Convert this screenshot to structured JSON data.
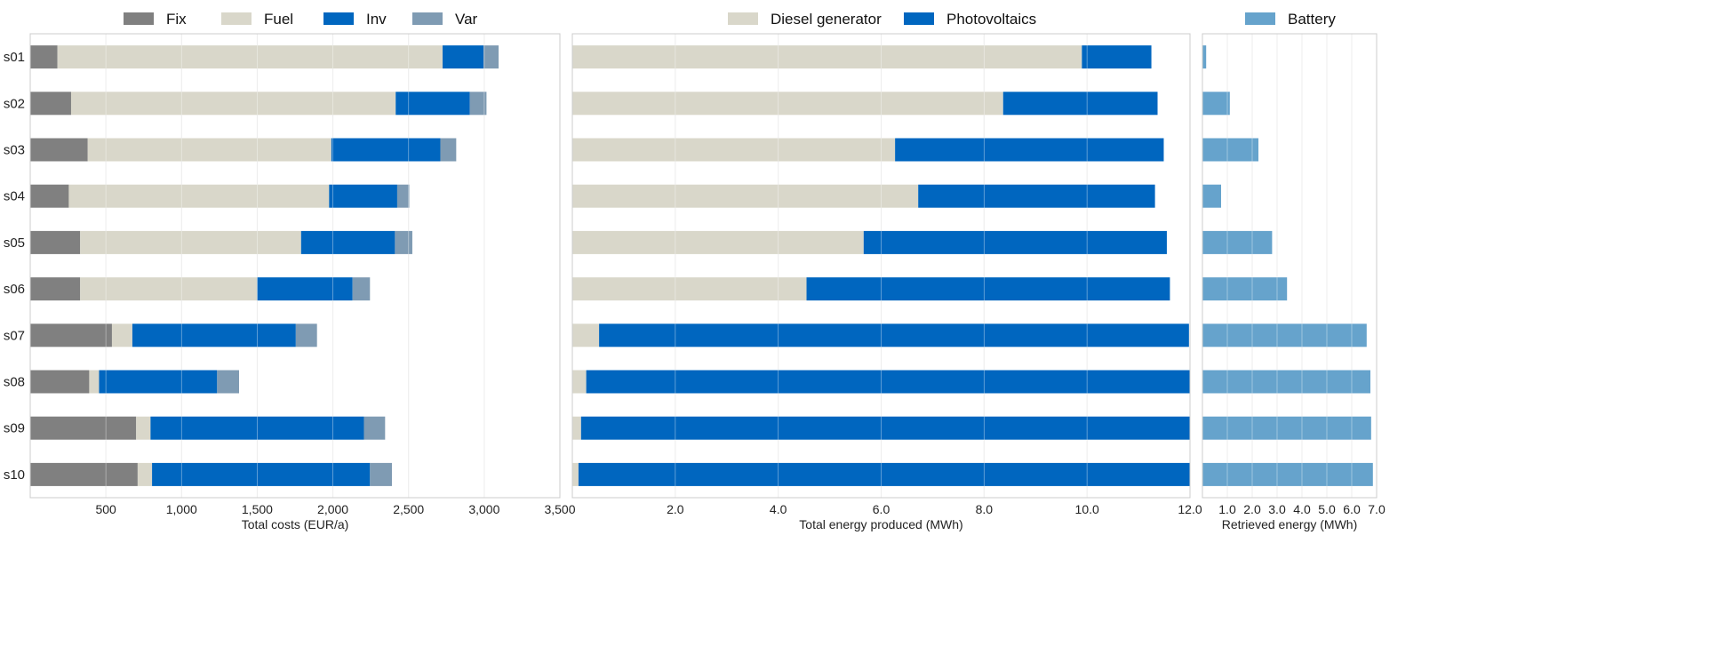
{
  "chart_data": [
    {
      "type": "bar",
      "orientation": "horizontal",
      "stacked": true,
      "categories": [
        "s01",
        "s02",
        "s03",
        "s04",
        "s05",
        "s06",
        "s07",
        "s08",
        "s09",
        "s10"
      ],
      "series": [
        {
          "name": "Fix",
          "color": "#808080",
          "values": [
            180,
            270,
            380,
            255,
            330,
            330,
            540,
            390,
            700,
            710
          ]
        },
        {
          "name": "Fuel",
          "color": "#d9d7ca",
          "values": [
            2545,
            2145,
            1610,
            1720,
            1460,
            1170,
            135,
            65,
            95,
            95
          ]
        },
        {
          "name": "Inv",
          "color": "#0066bf",
          "values": [
            270,
            490,
            720,
            450,
            620,
            630,
            1080,
            780,
            1410,
            1440
          ]
        },
        {
          "name": "Var",
          "color": "#7f9bb3",
          "values": [
            100,
            110,
            105,
            80,
            115,
            115,
            140,
            145,
            140,
            145
          ]
        }
      ],
      "xlabel": "Total costs (EUR/a)",
      "xlim": [
        0,
        3500
      ],
      "xticks": [
        500,
        1000,
        1500,
        2000,
        2500,
        3000,
        3500
      ],
      "xtick_labels": [
        "500",
        "1,000",
        "1,500",
        "2,000",
        "2,500",
        "3,000",
        "3,500"
      ],
      "grid": true,
      "legend": "top"
    },
    {
      "type": "bar",
      "orientation": "horizontal",
      "stacked": true,
      "categories": [
        "s01",
        "s02",
        "s03",
        "s04",
        "s05",
        "s06",
        "s07",
        "s08",
        "s09",
        "s10"
      ],
      "series": [
        {
          "name": "Diesel generator",
          "color": "#d9d7ca",
          "values": [
            9.9,
            8.37,
            6.27,
            6.72,
            5.66,
            4.55,
            0.52,
            0.27,
            0.17,
            0.12
          ]
        },
        {
          "name": "Photovoltaics",
          "color": "#0066bf",
          "values": [
            1.35,
            3.0,
            5.22,
            4.6,
            5.89,
            7.06,
            11.46,
            11.73,
            11.83,
            11.88
          ]
        }
      ],
      "xlabel": "Total energy produced (MWh)",
      "xlim": [
        0,
        12
      ],
      "xticks": [
        2,
        4,
        6,
        8,
        10,
        12
      ],
      "xtick_labels": [
        "2.0",
        "4.0",
        "6.0",
        "8.0",
        "10.0",
        "12.0"
      ],
      "grid": true,
      "legend": "top"
    },
    {
      "type": "bar",
      "orientation": "horizontal",
      "categories": [
        "s01",
        "s02",
        "s03",
        "s04",
        "s05",
        "s06",
        "s07",
        "s08",
        "s09",
        "s10"
      ],
      "series": [
        {
          "name": "Battery",
          "color": "#66a3cc",
          "values": [
            0.15,
            1.1,
            2.25,
            0.75,
            2.8,
            3.4,
            6.6,
            6.75,
            6.78,
            6.85
          ]
        }
      ],
      "xlabel": "Retrieved energy (MWh)",
      "xlim": [
        0,
        7
      ],
      "xticks": [
        1,
        2,
        3,
        4,
        5,
        6,
        7
      ],
      "xtick_labels": [
        "1.0",
        "2.0",
        "3.0",
        "4.0",
        "5.0",
        "6.0",
        "7.0"
      ],
      "grid": true,
      "legend": "top"
    }
  ]
}
